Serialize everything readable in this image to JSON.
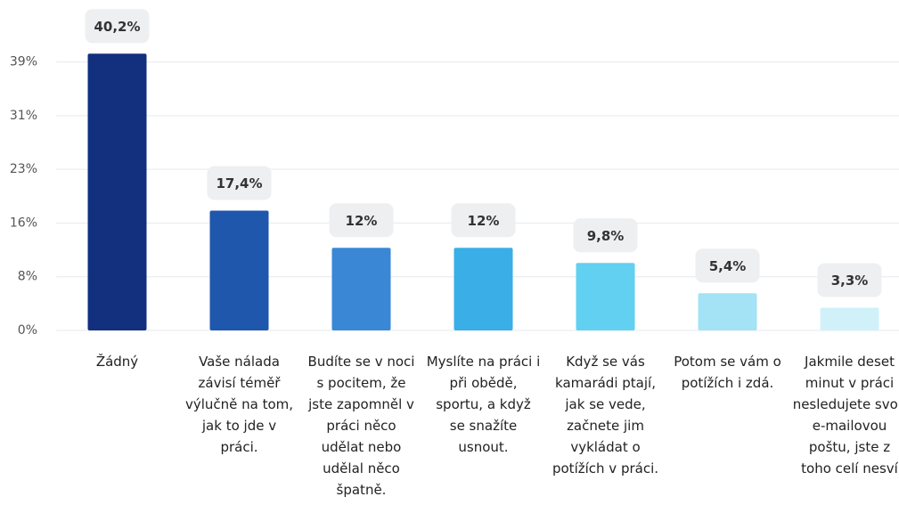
{
  "chart_data": {
    "type": "bar",
    "categories": [
      "Žádný",
      "Vaše nálada závisí téměř výlučně na tom, jak to jde v práci.",
      "Budíte se v noci s pocitem, že jste zapomněl v práci  něco udělat nebo udělal něco špatně.",
      "Myslíte na práci i při obědě, sportu, a když se snažíte usnout.",
      "Když se vás kamarádi ptají, jak se vede, začnete jim vykládat o potížích v práci.",
      "Potom se vám o potížích i zdá.",
      "Jakmile deset minut v práci nesledujete svou e-mailovou poštu, jste z toho celí nesví"
    ],
    "values": [
      40.2,
      17.4,
      12,
      12,
      9.8,
      5.4,
      3.3
    ],
    "value_labels": [
      "40,2%",
      "17,4%",
      "12%",
      "12%",
      "9,8%",
      "5,4%",
      "3,3%"
    ],
    "colors": [
      "#13307f",
      "#1f57ad",
      "#3a87d6",
      "#3aaee6",
      "#62d0f0",
      "#a3e3f5",
      "#d0f1fa"
    ],
    "ylim": [
      0,
      48
    ],
    "yticks": [
      {
        "value": 0,
        "label": "0%"
      },
      {
        "value": 7.8,
        "label": "8%"
      },
      {
        "value": 15.6,
        "label": "16%"
      },
      {
        "value": 23.4,
        "label": "23%"
      },
      {
        "value": 31.2,
        "label": "31%"
      },
      {
        "value": 39,
        "label": "39%"
      }
    ],
    "grid": true
  }
}
